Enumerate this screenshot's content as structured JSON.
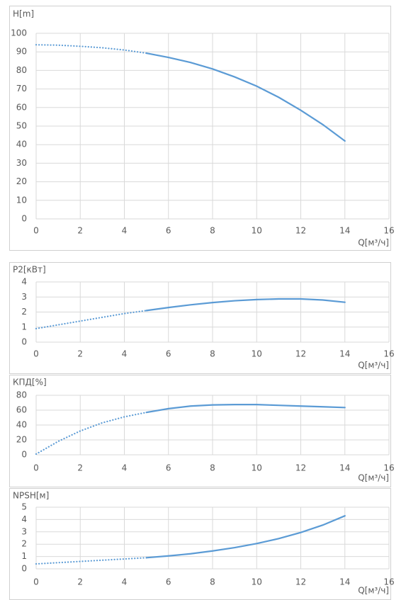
{
  "chart_data": [
    {
      "type": "line",
      "title": "H[m]",
      "x_label": "Q[м³/ч]",
      "x": [
        0,
        1,
        2,
        3,
        4,
        5,
        6,
        7,
        8,
        9,
        10,
        11,
        12,
        13,
        14
      ],
      "xlim": [
        0,
        16
      ],
      "xticks": [
        0,
        2,
        4,
        6,
        8,
        10,
        12,
        14,
        16
      ],
      "ylim": [
        0,
        100
      ],
      "yticks": [
        0,
        10,
        20,
        30,
        40,
        50,
        60,
        70,
        80,
        90,
        100
      ],
      "grid": true,
      "series": [
        {
          "color": "#5b9bd5",
          "dash": "dotted",
          "values": [
            93.8,
            93.6,
            93.0,
            92.2,
            91.0,
            89.3,
            null,
            null,
            null,
            null,
            null,
            null,
            null,
            null,
            null
          ]
        },
        {
          "color": "#5b9bd5",
          "dash": "solid",
          "values": [
            null,
            null,
            null,
            null,
            null,
            89.3,
            87.0,
            84.3,
            80.8,
            76.5,
            71.5,
            65.5,
            58.5,
            50.8,
            42.0
          ]
        }
      ]
    },
    {
      "type": "line",
      "title": "P2[кВт]",
      "x_label": "Q[м³/ч]",
      "x": [
        0,
        1,
        2,
        3,
        4,
        5,
        6,
        7,
        8,
        9,
        10,
        11,
        12,
        13,
        14
      ],
      "xlim": [
        0,
        16
      ],
      "xticks": [
        0,
        2,
        4,
        6,
        8,
        10,
        12,
        14,
        16
      ],
      "ylim": [
        0,
        4
      ],
      "yticks": [
        0,
        1,
        2,
        3,
        4
      ],
      "grid": true,
      "series": [
        {
          "color": "#5b9bd5",
          "dash": "dotted",
          "values": [
            0.9,
            1.15,
            1.4,
            1.65,
            1.9,
            2.1,
            null,
            null,
            null,
            null,
            null,
            null,
            null,
            null,
            null
          ]
        },
        {
          "color": "#5b9bd5",
          "dash": "solid",
          "values": [
            null,
            null,
            null,
            null,
            null,
            2.1,
            2.3,
            2.48,
            2.63,
            2.75,
            2.83,
            2.87,
            2.87,
            2.8,
            2.65
          ]
        }
      ]
    },
    {
      "type": "line",
      "title": "КПД[%]",
      "x_label": "Q[м³/ч]",
      "x": [
        0,
        1,
        2,
        3,
        4,
        5,
        6,
        7,
        8,
        9,
        10,
        11,
        12,
        13,
        14
      ],
      "xlim": [
        0,
        16
      ],
      "xticks": [
        0,
        2,
        4,
        6,
        8,
        10,
        12,
        14,
        16
      ],
      "ylim": [
        0,
        80
      ],
      "yticks": [
        0,
        20,
        40,
        60,
        80
      ],
      "grid": true,
      "series": [
        {
          "color": "#5b9bd5",
          "dash": "dotted",
          "values": [
            1,
            18,
            32,
            43,
            51,
            57,
            null,
            null,
            null,
            null,
            null,
            null,
            null,
            null,
            null
          ]
        },
        {
          "color": "#5b9bd5",
          "dash": "solid",
          "values": [
            null,
            null,
            null,
            null,
            null,
            57,
            62,
            65.5,
            67,
            67.5,
            67.5,
            66.5,
            65.5,
            64.5,
            63.5
          ]
        }
      ]
    },
    {
      "type": "line",
      "title": "NPSH[м]",
      "x_label": "Q[м³/ч]",
      "x": [
        0,
        1,
        2,
        3,
        4,
        5,
        6,
        7,
        8,
        9,
        10,
        11,
        12,
        13,
        14
      ],
      "xlim": [
        0,
        16
      ],
      "xticks": [
        0,
        2,
        4,
        6,
        8,
        10,
        12,
        14,
        16
      ],
      "ylim": [
        0,
        5
      ],
      "yticks": [
        0,
        1,
        2,
        3,
        4,
        5
      ],
      "grid": true,
      "series": [
        {
          "color": "#5b9bd5",
          "dash": "dotted",
          "values": [
            0.4,
            0.5,
            0.6,
            0.7,
            0.8,
            0.9,
            null,
            null,
            null,
            null,
            null,
            null,
            null,
            null,
            null
          ]
        },
        {
          "color": "#5b9bd5",
          "dash": "solid",
          "values": [
            null,
            null,
            null,
            null,
            null,
            0.9,
            1.05,
            1.22,
            1.45,
            1.72,
            2.05,
            2.45,
            2.95,
            3.55,
            4.3
          ]
        }
      ]
    }
  ]
}
